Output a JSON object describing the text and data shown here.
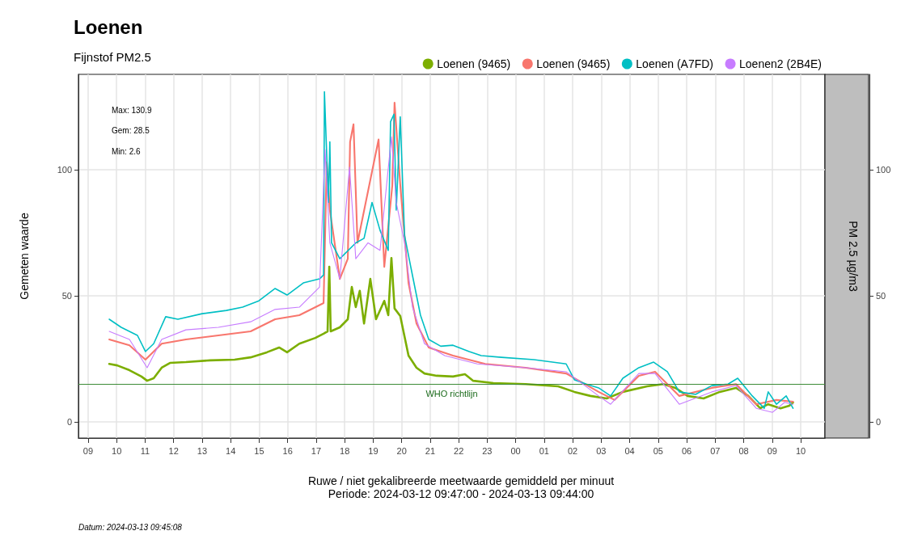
{
  "chart_data": {
    "type": "line",
    "title": "Loenen",
    "subtitle": "Fijnstof PM2.5",
    "xlabel": "Ruwe / niet gekalibreerde meetwaarde gemiddeld per minuut\nPeriode: 2024-03-12 09:47:00 - 2024-03-13 09:44:00",
    "ylabel": "Gemeten waarde",
    "y2label": "PM 2.5 µg/m3",
    "annotations": [
      "Max: 130.9",
      "Gem: 28.5",
      "Min: 2.6",
      "Datum: 2024-03-13 09:45:08"
    ],
    "xlim": [
      8.66,
      34.85
    ],
    "xticks": [
      {
        "value": 9,
        "label": "09"
      },
      {
        "value": 10,
        "label": "10"
      },
      {
        "value": 11,
        "label": "11"
      },
      {
        "value": 12,
        "label": "12"
      },
      {
        "value": 13,
        "label": "13"
      },
      {
        "value": 14,
        "label": "14"
      },
      {
        "value": 15,
        "label": "15"
      },
      {
        "value": 16,
        "label": "16"
      },
      {
        "value": 17,
        "label": "17"
      },
      {
        "value": 18,
        "label": "18"
      },
      {
        "value": 19,
        "label": "19"
      },
      {
        "value": 20,
        "label": "20"
      },
      {
        "value": 21,
        "label": "21"
      },
      {
        "value": 22,
        "label": "22"
      },
      {
        "value": 23,
        "label": "23"
      },
      {
        "value": 24,
        "label": "00"
      },
      {
        "value": 25,
        "label": "01"
      },
      {
        "value": 26,
        "label": "02"
      },
      {
        "value": 27,
        "label": "03"
      },
      {
        "value": 28,
        "label": "04"
      },
      {
        "value": 29,
        "label": "05"
      },
      {
        "value": 30,
        "label": "06"
      },
      {
        "value": 31,
        "label": "07"
      },
      {
        "value": 32,
        "label": "08"
      },
      {
        "value": 33,
        "label": "09"
      },
      {
        "value": 34,
        "label": "10"
      }
    ],
    "ylim": [
      -6.4,
      137.8
    ],
    "yticks": [
      0,
      50,
      100
    ],
    "y2lim": [
      -6.4,
      137.8
    ],
    "y2ticks": [
      0,
      50,
      100
    ],
    "grid": true,
    "legend": "top right",
    "line_style": "solid",
    "ref_lines": [
      {
        "axis": "y",
        "value": 15,
        "label": "WHO richtlijn",
        "color": "#3d8b37"
      }
    ],
    "series": [
      {
        "name": "Loenen (9465)",
        "color": "#7cae00",
        "x": [
          9.74,
          10.02,
          10.45,
          10.87,
          11.07,
          11.3,
          11.58,
          11.87,
          12.43,
          13.28,
          14.14,
          14.7,
          15.27,
          15.7,
          15.98,
          16.41,
          16.97,
          17.26,
          17.4,
          17.46,
          17.51,
          17.83,
          18.11,
          18.25,
          18.39,
          18.53,
          18.68,
          18.9,
          19.1,
          19.39,
          19.53,
          19.64,
          19.75,
          19.95,
          20.24,
          20.52,
          20.8,
          21.23,
          21.8,
          22.22,
          22.51,
          23.22,
          24.35,
          25.49,
          26.06,
          26.62,
          27.19,
          27.76,
          28.61,
          29.18,
          29.6,
          30.03,
          30.59,
          31.16,
          31.73,
          32.16,
          32.58,
          32.86,
          33.29,
          33.6,
          33.73
        ],
        "values": [
          23,
          22.4,
          20.5,
          18,
          16.3,
          17.3,
          21.5,
          23.4,
          23.7,
          24.4,
          24.7,
          25.6,
          27.6,
          29.5,
          27.6,
          31,
          33.3,
          35,
          35.9,
          61.5,
          35.9,
          37.5,
          40.7,
          53.5,
          45.5,
          52,
          39,
          56.7,
          40.7,
          48,
          42.3,
          65,
          45,
          42,
          26.3,
          21.5,
          19.2,
          18.3,
          18,
          18.9,
          16.3,
          15.4,
          15,
          14.1,
          11.9,
          10.3,
          9.3,
          11.9,
          14.1,
          15,
          13.5,
          10.3,
          9.3,
          11.9,
          13.5,
          10.3,
          5.4,
          7,
          5.4,
          6.4,
          7.7
        ]
      },
      {
        "name": "Loenen (9465)",
        "color": "#f8766d",
        "x": [
          9.74,
          10.45,
          11.01,
          11.58,
          12.43,
          13.57,
          14.7,
          15.56,
          16.41,
          17.26,
          17.37,
          17.48,
          17.83,
          18.11,
          18.19,
          18.31,
          18.45,
          19.19,
          19.39,
          19.67,
          19.75,
          19.95,
          20.24,
          20.52,
          20.95,
          21.8,
          22.93,
          24.35,
          25.77,
          26.91,
          27.47,
          28.32,
          28.89,
          29.74,
          30.88,
          31.73,
          32.44,
          33.15,
          33.73
        ],
        "values": [
          32.7,
          30.4,
          24.7,
          31,
          32.7,
          34.3,
          35.9,
          40.7,
          42.3,
          47.1,
          103,
          84,
          56.7,
          64.7,
          111,
          118,
          71,
          112,
          61.5,
          93.6,
          126.6,
          94,
          55,
          39,
          29.5,
          26.3,
          23,
          21.5,
          19.2,
          11.9,
          8.7,
          18.3,
          19.9,
          10.3,
          13.5,
          15,
          7,
          8.7,
          8
        ]
      },
      {
        "name": "Loenen (A7FD)",
        "color": "#00bfc4",
        "x": [
          9.74,
          10.16,
          10.73,
          11.01,
          11.3,
          11.72,
          12.15,
          13.0,
          13.85,
          14.42,
          14.99,
          15.56,
          15.98,
          16.55,
          17.12,
          17.26,
          17.29,
          17.43,
          17.48,
          17.54,
          17.83,
          18.39,
          18.68,
          18.96,
          19.24,
          19.53,
          19.61,
          19.73,
          19.81,
          19.95,
          20.1,
          20.38,
          20.66,
          20.95,
          21.37,
          21.8,
          22.37,
          22.79,
          23.5,
          24.64,
          25.77,
          26.06,
          26.48,
          26.91,
          27.33,
          27.76,
          28.32,
          28.84,
          29.32,
          29.74,
          30.31,
          30.88,
          31.45,
          31.79,
          32.3,
          32.72,
          32.86,
          33.15,
          33.49,
          33.73
        ],
        "values": [
          40.7,
          37.5,
          34.3,
          27.9,
          31,
          41.7,
          40.7,
          42.9,
          44.2,
          45.5,
          48,
          52.9,
          50.3,
          55.1,
          56.7,
          58.3,
          130.9,
          87,
          111,
          71,
          64.7,
          71,
          72.8,
          87,
          76,
          68,
          119,
          122,
          84,
          121,
          74,
          58,
          42.3,
          32.7,
          30,
          30.4,
          27.9,
          26.3,
          25.6,
          24.7,
          23,
          16.7,
          15,
          13.5,
          10.3,
          17.3,
          21.5,
          23.7,
          19.9,
          11.9,
          10.9,
          14.4,
          15,
          17.3,
          10.3,
          5.4,
          11.9,
          7,
          10.3,
          5.4
        ]
      },
      {
        "name": "Loenen2 (2B4E)",
        "color": "#c77cff",
        "x": [
          9.74,
          10.45,
          11.07,
          11.58,
          12.43,
          13.57,
          14.7,
          15.56,
          16.41,
          17.12,
          17.31,
          17.48,
          17.83,
          18.17,
          18.39,
          18.82,
          19.24,
          19.64,
          19.81,
          20.1,
          20.38,
          20.8,
          21.51,
          22.65,
          24.35,
          25.77,
          26.91,
          27.33,
          28.32,
          28.89,
          29.74,
          30.88,
          31.73,
          32.44,
          33.01,
          33.43,
          33.73
        ],
        "values": [
          35.9,
          32.7,
          21.5,
          32.7,
          36.5,
          37.5,
          39.7,
          44.6,
          45.5,
          53.5,
          108,
          71,
          56.7,
          101,
          64.7,
          71,
          68,
          113,
          87,
          71,
          45.5,
          31,
          26.3,
          23,
          21.5,
          19.9,
          10.3,
          7,
          19.2,
          19.2,
          7,
          11.9,
          14.4,
          5.4,
          3.8,
          7.7,
          7
        ]
      }
    ]
  }
}
